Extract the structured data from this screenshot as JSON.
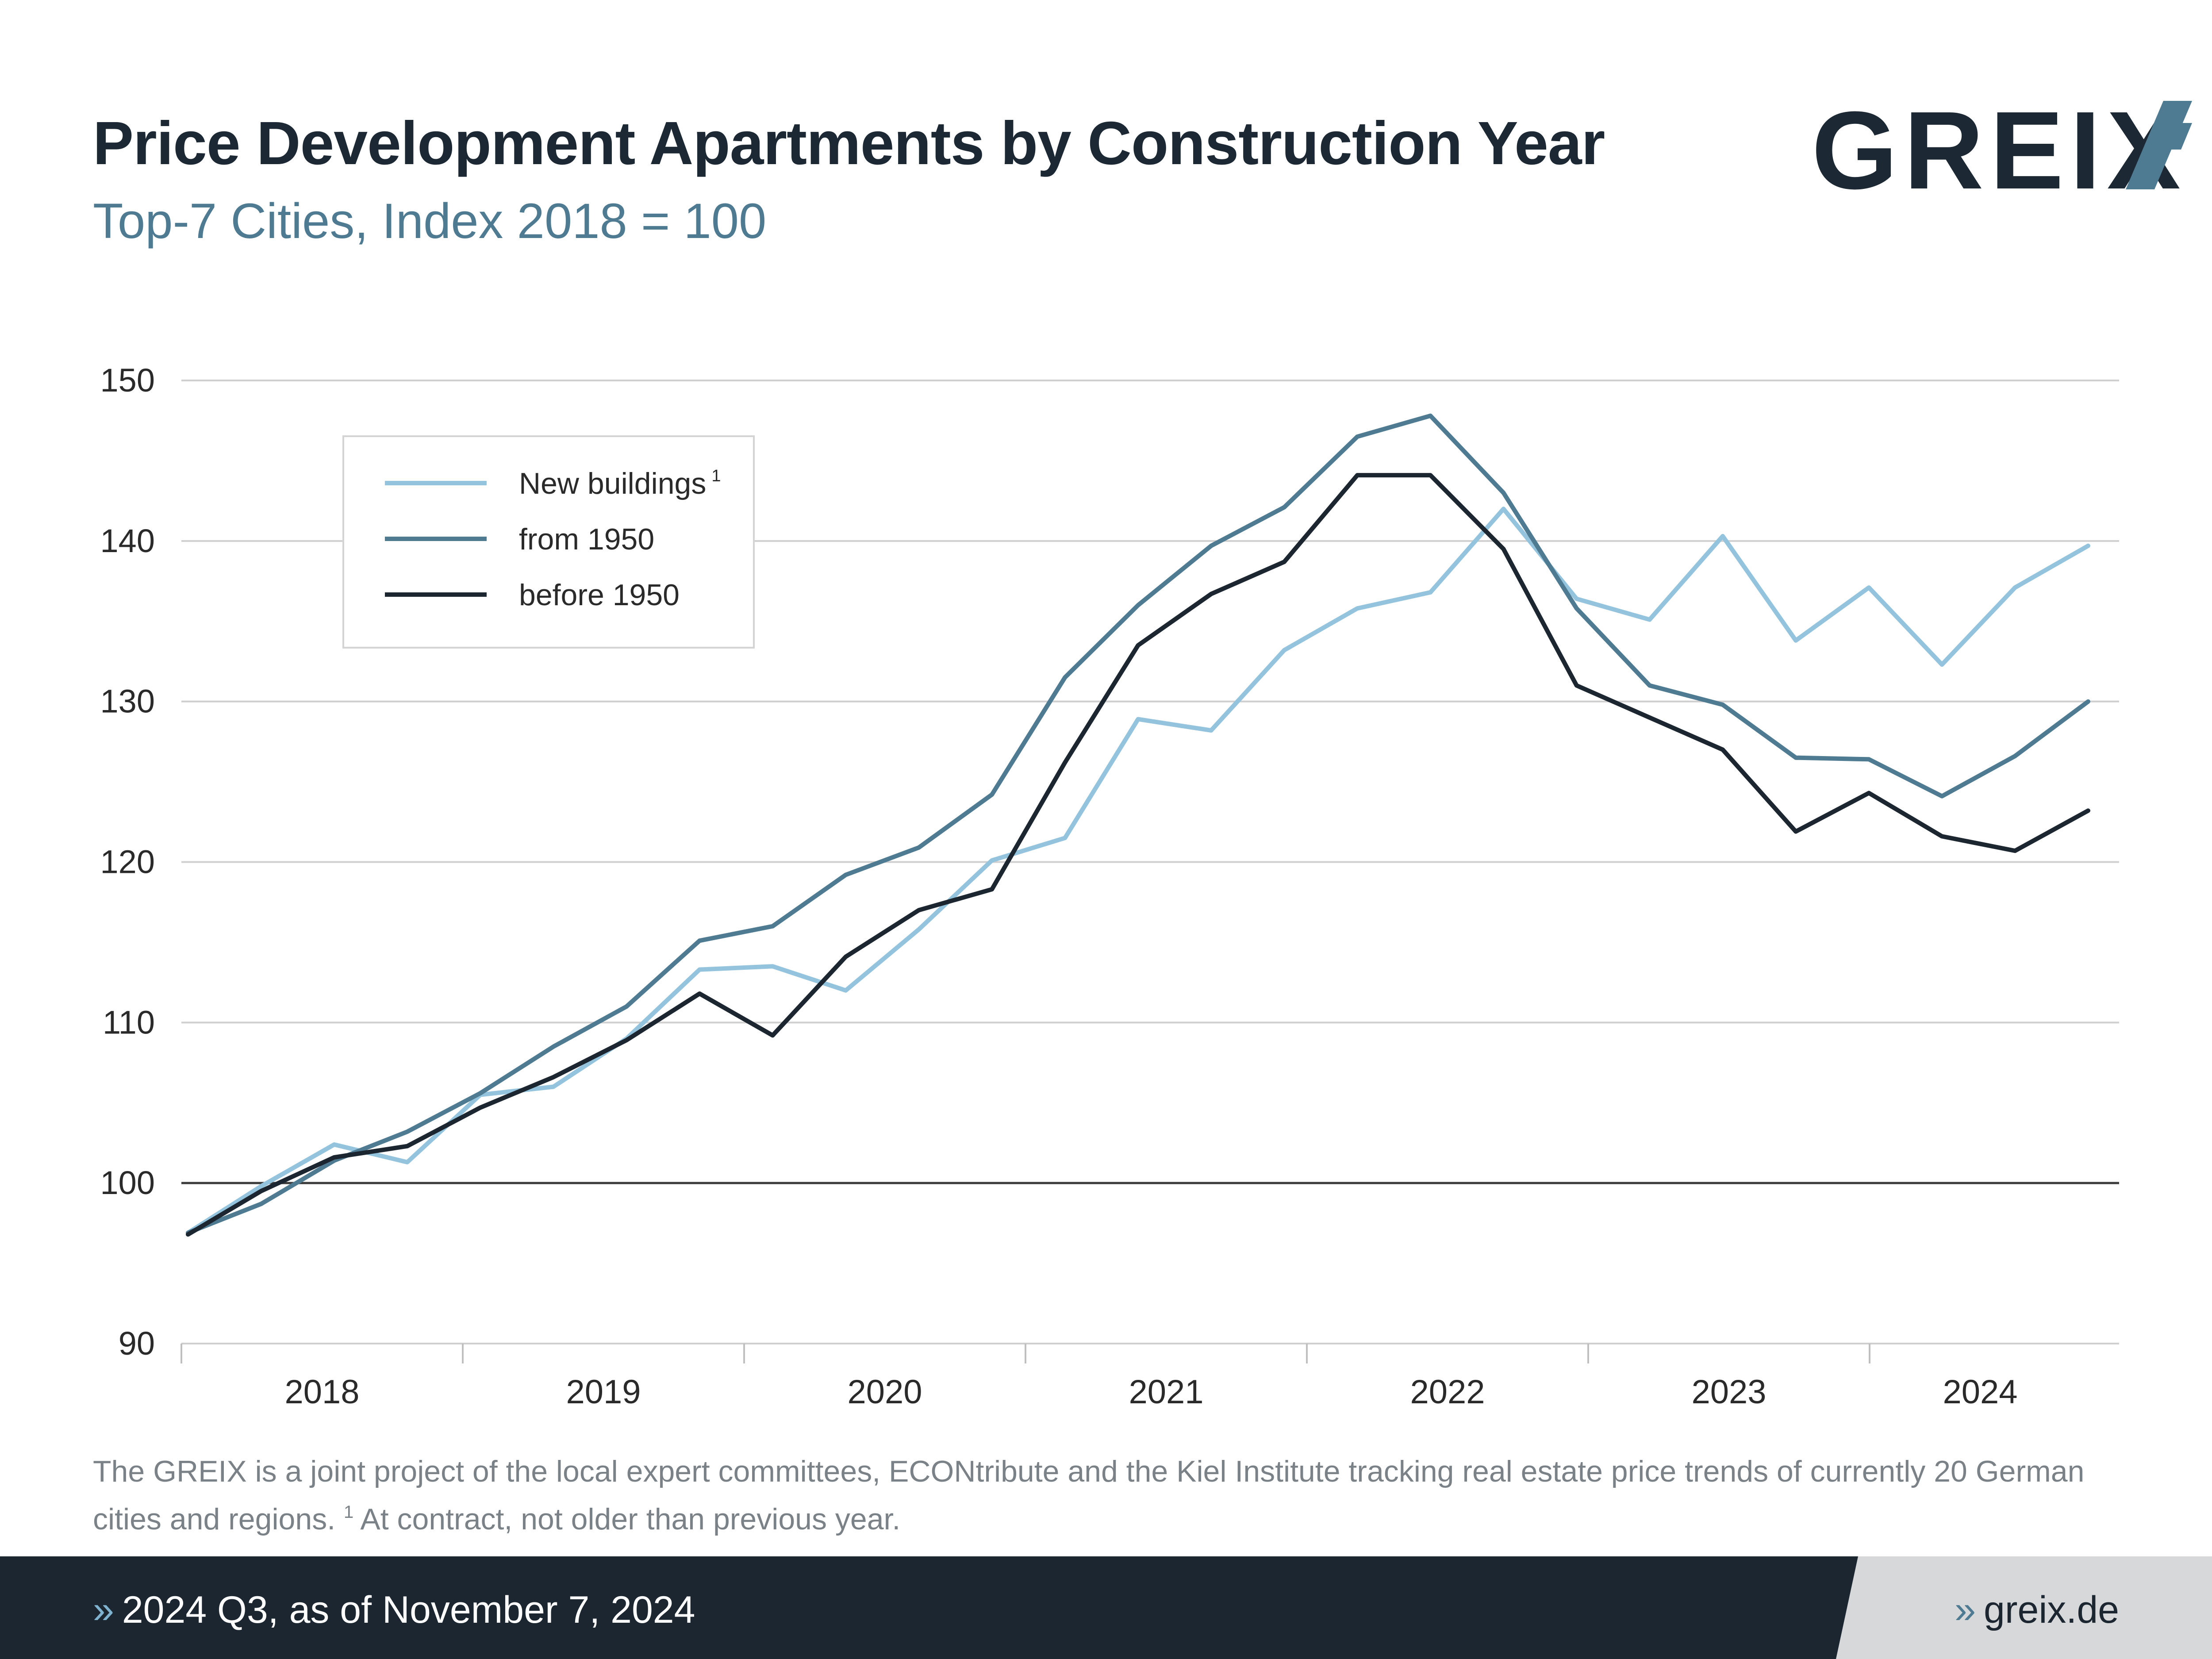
{
  "header": {
    "title": "Price Development Apartments by Construction Year",
    "subtitle": "Top-7 Cities, Index 2018 = 100",
    "logo_text": "GREIX"
  },
  "colors": {
    "new_buildings": "#94c4dd",
    "from_1950": "#4f7b92",
    "before_1950": "#1c2630",
    "grid": "#cfcfcf",
    "baseline": "#3a3a3a"
  },
  "legend": {
    "items": [
      {
        "label": "New buildings",
        "footnote_mark": "1"
      },
      {
        "label": "from 1950"
      },
      {
        "label": "before 1950"
      }
    ]
  },
  "chart_data": {
    "type": "line",
    "title": "Price Development Apartments by Construction Year",
    "subtitle": "Top-7 Cities, Index 2018 = 100",
    "xlabel": "",
    "ylabel": "",
    "ylim": [
      90,
      150
    ],
    "y_ticks": [
      90,
      100,
      110,
      120,
      130,
      140,
      150
    ],
    "x_tick_labels": [
      "2018",
      "2019",
      "2020",
      "2021",
      "2022",
      "2023",
      "2024"
    ],
    "grid": "horizontal",
    "legend_position": "top-left",
    "x": [
      "2018 Q1",
      "2018 Q2",
      "2018 Q3",
      "2018 Q4",
      "2019 Q1",
      "2019 Q2",
      "2019 Q3",
      "2019 Q4",
      "2020 Q1",
      "2020 Q2",
      "2020 Q3",
      "2020 Q4",
      "2021 Q1",
      "2021 Q2",
      "2021 Q3",
      "2021 Q4",
      "2022 Q1",
      "2022 Q2",
      "2022 Q3",
      "2022 Q4",
      "2023 Q1",
      "2023 Q2",
      "2023 Q3",
      "2023 Q4",
      "2024 Q1",
      "2024 Q2",
      "2024 Q3"
    ],
    "series": [
      {
        "name": "New buildings",
        "values": [
          96.9,
          99.8,
          102.4,
          101.3,
          105.5,
          106.0,
          109.0,
          113.3,
          113.5,
          112.0,
          115.8,
          120.1,
          121.5,
          128.9,
          128.2,
          133.2,
          135.8,
          136.8,
          142.0,
          136.4,
          135.1,
          140.3,
          133.8,
          137.1,
          132.3,
          137.1,
          139.7
        ]
      },
      {
        "name": "from 1950",
        "values": [
          96.9,
          98.7,
          101.4,
          103.2,
          105.6,
          108.5,
          111.0,
          115.1,
          116.0,
          119.2,
          120.9,
          124.2,
          131.5,
          136.0,
          139.7,
          142.1,
          146.5,
          147.8,
          143.0,
          135.8,
          131.0,
          129.8,
          126.5,
          126.4,
          124.1,
          126.6,
          130.0
        ]
      },
      {
        "name": "before 1950",
        "values": [
          96.8,
          99.5,
          101.6,
          102.3,
          104.7,
          106.6,
          108.9,
          111.8,
          109.2,
          114.1,
          117.0,
          118.3,
          126.2,
          133.5,
          136.7,
          138.7,
          144.1,
          144.1,
          139.5,
          131.0,
          129.0,
          127.0,
          121.9,
          124.3,
          121.6,
          120.7,
          123.2
        ]
      }
    ]
  },
  "footnote": {
    "text": "The GREIX is a joint project of the local expert committees, ECONtribute and the Kiel Institute tracking real estate price trends of currently 20 German cities and regions.",
    "note_mark": "1",
    "note_text": "At contract, not older than previous year."
  },
  "footer": {
    "left_prefix": "»",
    "left_text": "2024 Q3, as of November 7, 2024",
    "right_prefix": "»",
    "right_text": "greix.de"
  }
}
